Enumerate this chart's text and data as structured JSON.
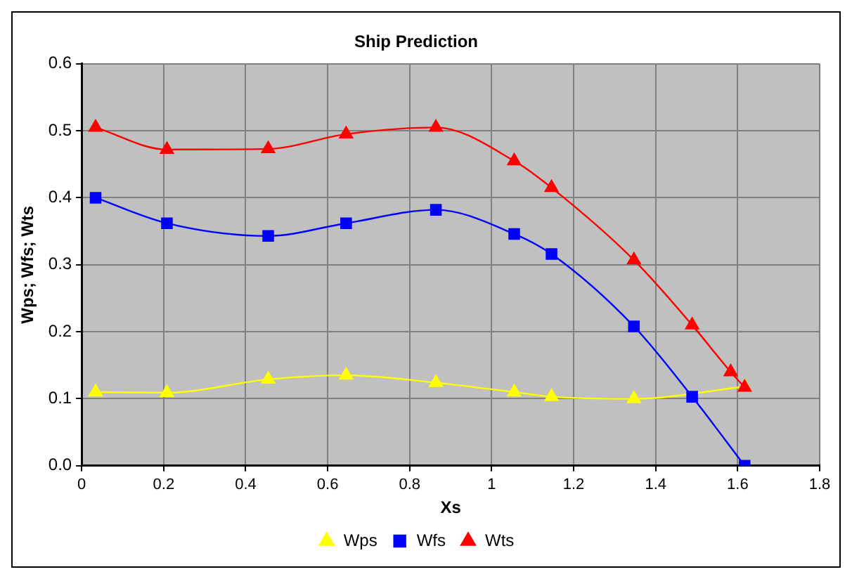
{
  "chart_data": {
    "type": "line",
    "title": "Ship Prediction",
    "xlabel": "Xs",
    "ylabel": "Wps; Wfs; Wts",
    "xlim": [
      0,
      1.8
    ],
    "xticks": [
      0,
      0.2,
      0.4,
      0.6,
      0.8,
      1,
      1.2,
      1.4,
      1.6,
      1.8
    ],
    "ylim": [
      0,
      0.6
    ],
    "yticks": [
      {
        "value": 0,
        "label": "0.0"
      },
      0.1,
      0.2,
      0.3,
      0.4,
      0.5,
      0.6
    ],
    "grid": true,
    "legend": "bottom",
    "series": [
      {
        "name": "Wps",
        "color": "#ffff00",
        "marker": "triangle",
        "x": [
          0.034,
          0.208,
          0.455,
          0.645,
          0.864,
          1.055,
          1.146,
          1.347,
          1.617
        ],
        "values": [
          0.11,
          0.109,
          0.129,
          0.135,
          0.124,
          0.11,
          0.103,
          0.1,
          0.118
        ]
      },
      {
        "name": "Wfs",
        "color": "#0000ff",
        "marker": "square",
        "x": [
          0.034,
          0.208,
          0.455,
          0.645,
          0.864,
          1.055,
          1.146,
          1.347,
          1.489,
          1.617
        ],
        "values": [
          0.4,
          0.362,
          0.343,
          0.362,
          0.382,
          0.346,
          0.316,
          0.208,
          0.103,
          0.0
        ]
      },
      {
        "name": "Wts",
        "color": "#ff0000",
        "marker": "triangle",
        "x": [
          0.034,
          0.208,
          0.455,
          0.645,
          0.864,
          1.055,
          1.146,
          1.347,
          1.489,
          1.583,
          1.617
        ],
        "values": [
          0.505,
          0.472,
          0.473,
          0.495,
          0.505,
          0.455,
          0.415,
          0.307,
          0.21,
          0.14,
          0.117
        ]
      }
    ]
  }
}
